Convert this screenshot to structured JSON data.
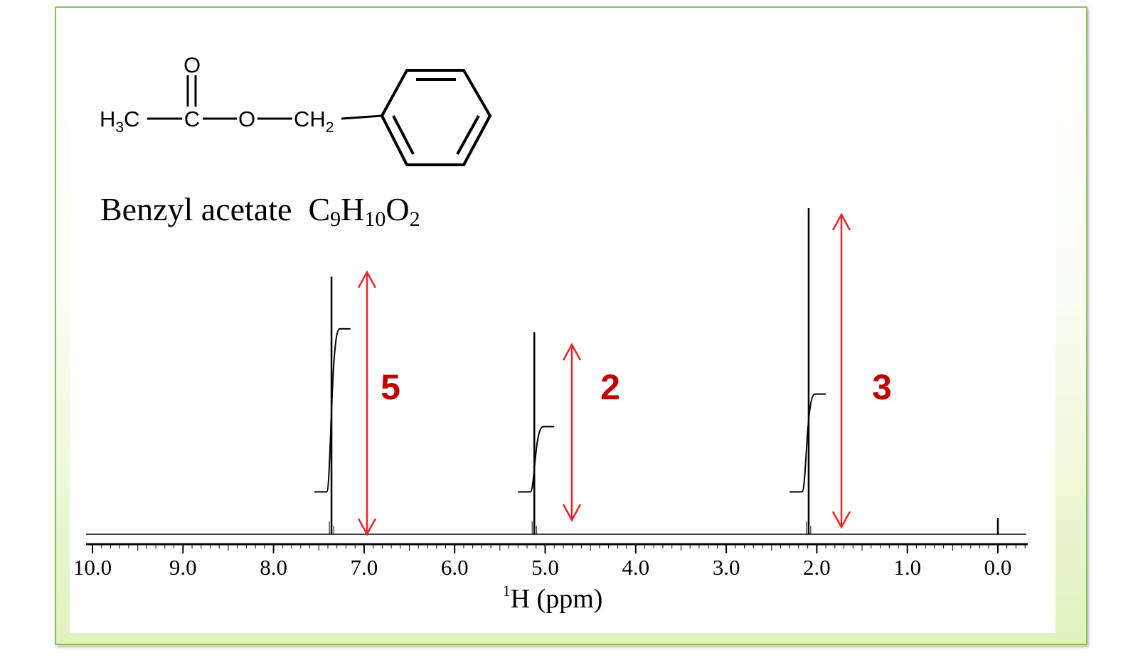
{
  "molecule": {
    "name": "Benzyl acetate",
    "formula": {
      "c": "C",
      "c_n": "9",
      "h": "H",
      "h_n": "10",
      "o": "O",
      "o_n": "2"
    },
    "atoms": {
      "o_top": "O",
      "methyl": "H",
      "methyl_sub": "3",
      "methyl_c": "C",
      "carbonyl_c": "C",
      "ester_o": "O",
      "methylene": "CH",
      "methylene_sub": "2"
    }
  },
  "colors": {
    "frame": "#8dbf5c",
    "annotation": "#c00000",
    "arrow": "#e8262b",
    "trace": "#000000"
  },
  "chart_data": {
    "type": "line",
    "xlabel": "H (ppm)",
    "xlabel_superscript": "1",
    "xlim": [
      10.0,
      0.0
    ],
    "x_reversed": true,
    "ticks": [
      "10.0",
      "9.0",
      "8.0",
      "7.0",
      "6.0",
      "5.0",
      "4.0",
      "3.0",
      "2.0",
      "1.0",
      "0.0"
    ],
    "peaks": [
      {
        "ppm": 7.36,
        "height": 0.79
      },
      {
        "ppm": 5.12,
        "height": 0.62
      },
      {
        "ppm": 2.09,
        "height": 1.0
      },
      {
        "ppm": 0.0,
        "height": 0.05
      }
    ],
    "integrals": [
      {
        "label": "5",
        "from_ppm": 7.55,
        "to_ppm": 7.15,
        "start_level": 0.13,
        "end_level": 0.63
      },
      {
        "label": "2",
        "from_ppm": 5.3,
        "to_ppm": 4.9,
        "start_level": 0.13,
        "end_level": 0.33
      },
      {
        "label": "3",
        "from_ppm": 2.3,
        "to_ppm": 1.9,
        "start_level": 0.13,
        "end_level": 0.43
      }
    ]
  }
}
